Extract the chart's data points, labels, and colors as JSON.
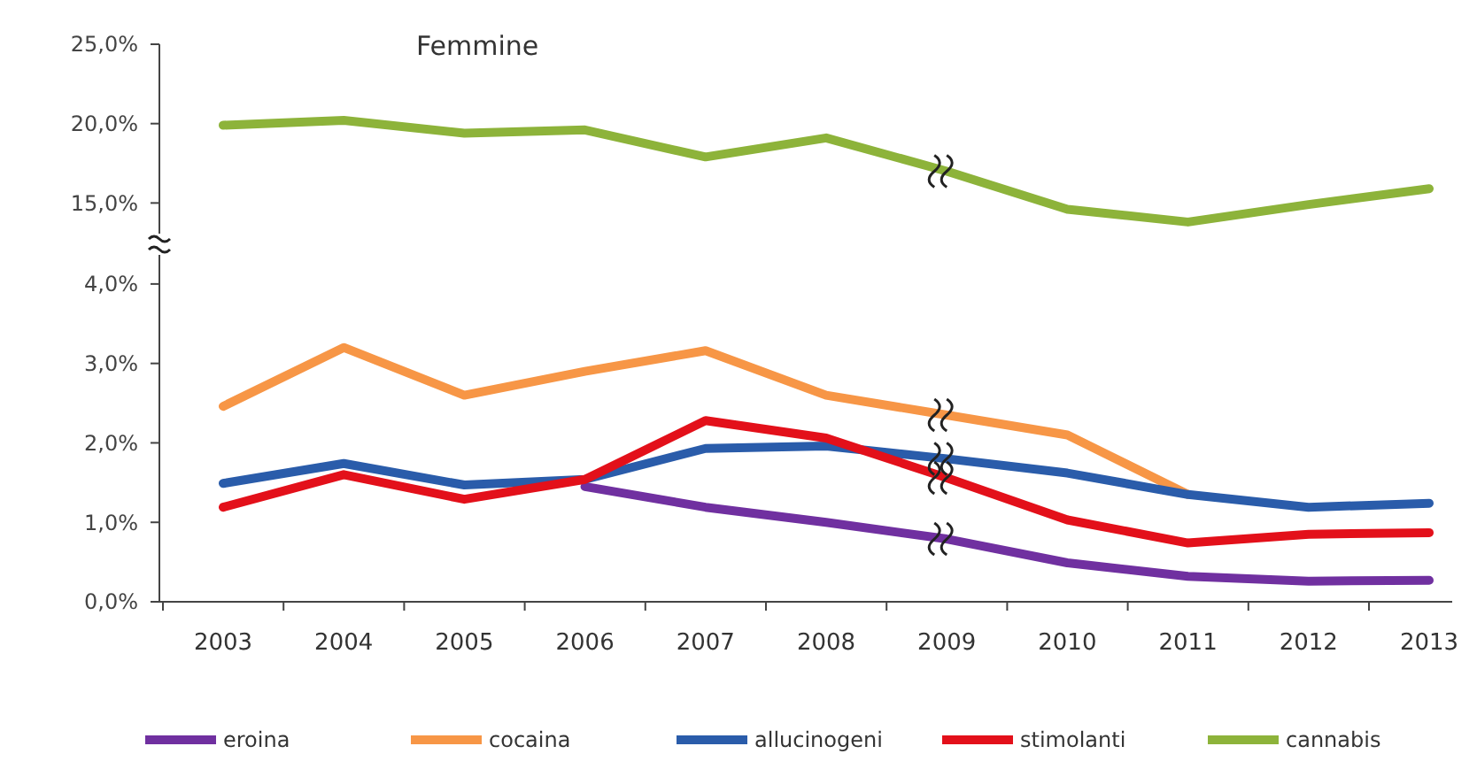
{
  "chart_data": [
    {
      "type": "line",
      "title": "Femmine",
      "categories": [
        "2003",
        "2004",
        "2005",
        "2006",
        "2007",
        "2008",
        "2009",
        "2010",
        "2011",
        "2012",
        "2013"
      ],
      "series": [
        {
          "name": "cannabis",
          "color": "#8db33a",
          "values": [
            19.9,
            20.2,
            19.4,
            19.6,
            17.9,
            19.1,
            17.0,
            14.6,
            13.8,
            14.9,
            15.9
          ]
        }
      ],
      "ylim": [
        12.4,
        25
      ],
      "yticks": [
        {
          "value": 15,
          "label": "15,0%"
        },
        {
          "value": 20,
          "label": "20,0%"
        },
        {
          "value": 25,
          "label": "25,0%"
        }
      ],
      "tick_labels": "y",
      "grid": false,
      "legend": "bottom",
      "marker": "none",
      "line_style": "solid"
    },
    {
      "type": "line",
      "categories": [
        "2003",
        "2004",
        "2005",
        "2006",
        "2007",
        "2008",
        "2009",
        "2010",
        "2011",
        "2012",
        "2013"
      ],
      "series": [
        {
          "name": "eroina",
          "color": "#7030a0",
          "values": [
            null,
            null,
            null,
            1.45,
            1.19,
            1.0,
            0.79,
            0.49,
            0.32,
            0.26,
            0.27
          ]
        },
        {
          "name": "cocaina",
          "color": "#f79646",
          "values": [
            2.46,
            3.2,
            2.6,
            2.9,
            3.16,
            2.6,
            2.35,
            2.1,
            1.35,
            null,
            null
          ]
        },
        {
          "name": "allucinogeni",
          "color": "#2a5caa",
          "values": [
            1.49,
            1.74,
            1.47,
            1.54,
            1.93,
            1.96,
            1.8,
            1.62,
            1.35,
            1.19,
            1.24
          ]
        },
        {
          "name": "stimolanti",
          "color": "#e3101a",
          "values": [
            1.19,
            1.6,
            1.29,
            1.54,
            2.28,
            2.06,
            1.56,
            1.03,
            0.74,
            0.85,
            0.87
          ]
        }
      ],
      "ylim": [
        0,
        4.5
      ],
      "yticks": [
        {
          "value": 0,
          "label": "0,0%"
        },
        {
          "value": 1,
          "label": "1,0%"
        },
        {
          "value": 2,
          "label": "2,0%"
        },
        {
          "value": 3,
          "label": "3,0%"
        },
        {
          "value": 4,
          "label": "4,0%"
        }
      ],
      "grid": false,
      "legend": "bottom",
      "marker": "none",
      "line_style": "solid"
    }
  ]
}
